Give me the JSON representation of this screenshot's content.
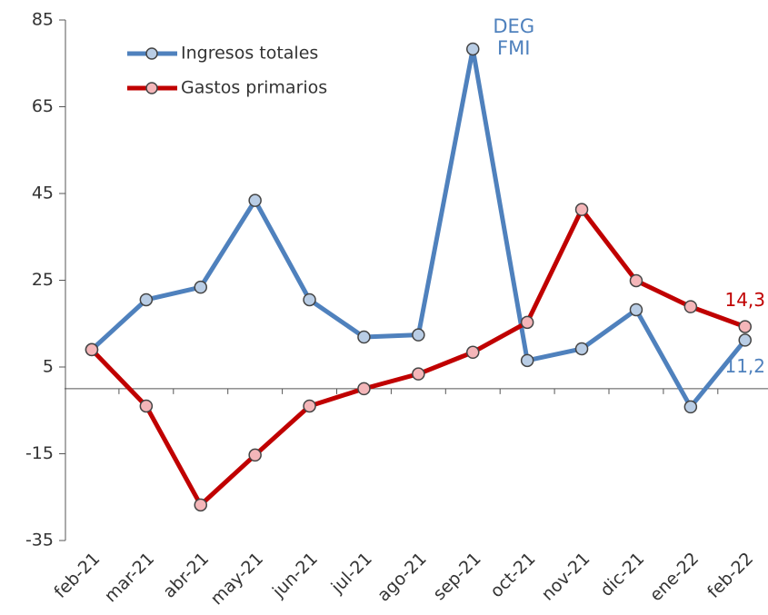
{
  "chart_data": {
    "type": "line",
    "categories": [
      "feb-21",
      "mar-21",
      "abr-21",
      "may-21",
      "jun-21",
      "jul-21",
      "ago-21",
      "sep-21",
      "oct-21",
      "nov-21",
      "dic-21",
      "ene-22",
      "feb-22"
    ],
    "series": [
      {
        "name": "Ingresos totales",
        "color": "#4f81bd",
        "marker_fill": "#b9cde5",
        "values": [
          9.0,
          20.5,
          23.4,
          43.4,
          20.5,
          11.9,
          12.4,
          78.3,
          6.5,
          9.2,
          18.2,
          -4.2,
          11.2
        ],
        "value_labels": [
          null,
          null,
          null,
          null,
          null,
          null,
          null,
          null,
          null,
          null,
          null,
          null,
          "11,2"
        ]
      },
      {
        "name": "Gastos primarios",
        "color": "#c00000",
        "marker_fill": "#f4b6b9",
        "values": [
          9.0,
          -4.0,
          -26.8,
          -15.3,
          -4.0,
          0.0,
          3.4,
          8.4,
          15.3,
          41.3,
          24.9,
          18.9,
          14.3
        ],
        "value_labels": [
          null,
          null,
          null,
          null,
          null,
          null,
          null,
          null,
          null,
          null,
          null,
          null,
          "14,3"
        ]
      }
    ],
    "annotations": [
      "DEG",
      "FMI"
    ],
    "ylim": [
      -35,
      85
    ],
    "yticks": [
      -35,
      -15,
      5,
      25,
      45,
      65,
      85
    ]
  }
}
